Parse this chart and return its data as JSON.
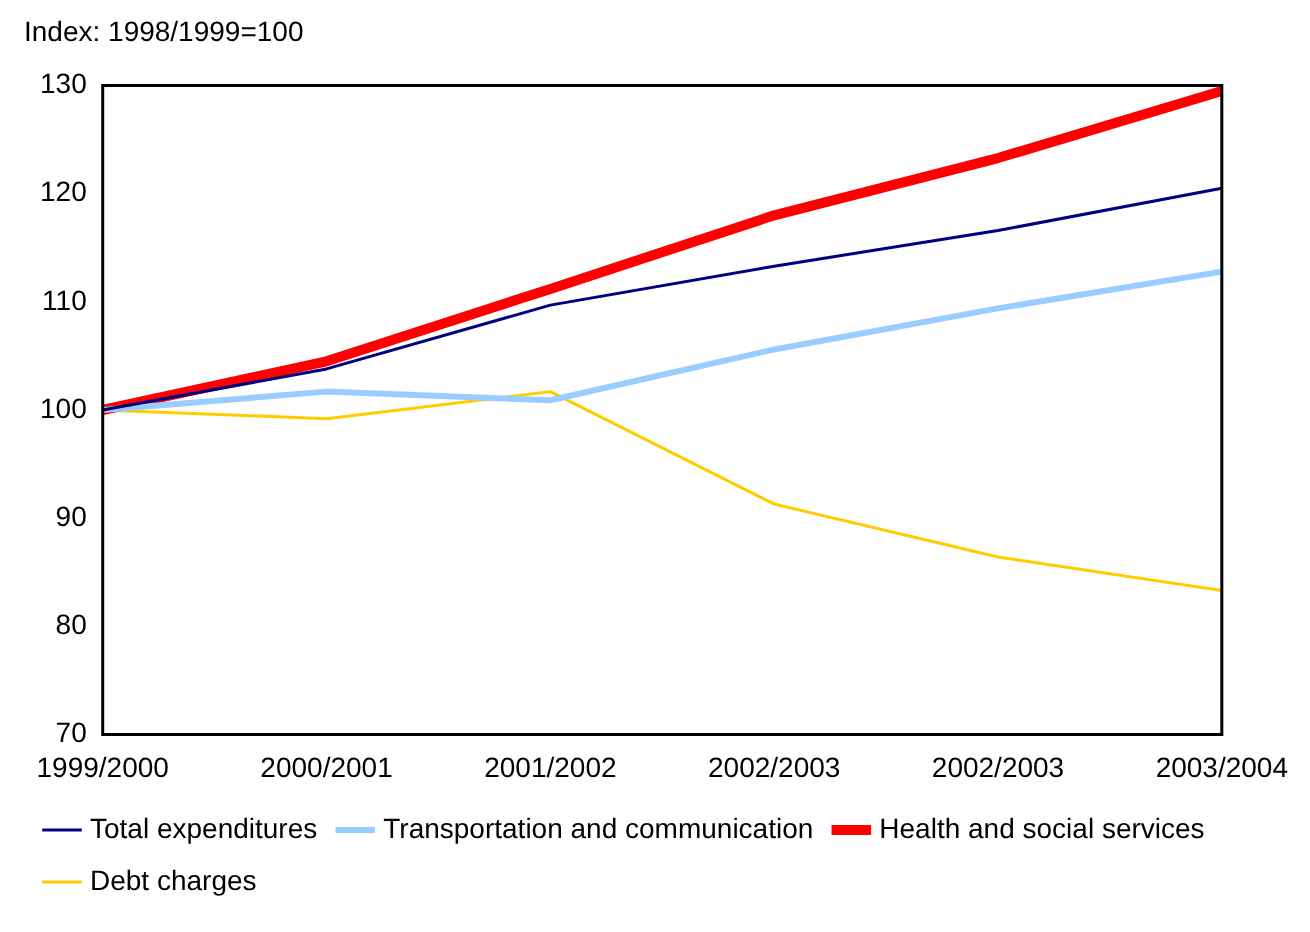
{
  "chart_data": {
    "type": "line",
    "title": "Index: 1998/1999=100",
    "categories": [
      "1999/2000",
      "2000/2001",
      "2001/2002",
      "2002/2003",
      "2002/2003",
      "2003/2004"
    ],
    "series": [
      {
        "name": "Total expenditures",
        "color": "#000080",
        "values": [
          100,
          103.8,
          109.7,
          113.3,
          116.6,
          120.5
        ]
      },
      {
        "name": "Transportation and communication",
        "color": "#99ccff",
        "values": [
          100,
          101.7,
          100.9,
          105.6,
          109.4,
          112.8
        ]
      },
      {
        "name": "Health and social services",
        "color": "#ff0000",
        "values": [
          100,
          104.5,
          111.2,
          118,
          123.3,
          129.5
        ]
      },
      {
        "name": "Debt charges",
        "color": "#ffcc00",
        "values": [
          100,
          99.2,
          101.7,
          91.3,
          86.4,
          83.3
        ]
      }
    ],
    "ylim": [
      70,
      130
    ],
    "yticks": [
      70,
      80,
      90,
      100,
      110,
      120,
      130
    ],
    "grid": false,
    "legend": "bottom",
    "marker": "none",
    "line_style": "solid"
  }
}
